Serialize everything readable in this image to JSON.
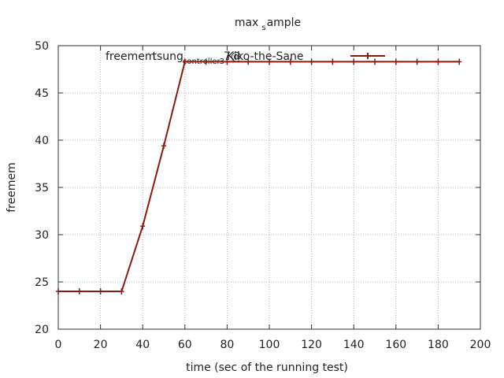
{
  "chart_data": {
    "type": "line",
    "title": {
      "main": "max",
      "sub": "s",
      "rest": "ample"
    },
    "xlabel": "time (sec of the running test)",
    "ylabel": "freemem",
    "xlim": [
      0,
      200
    ],
    "ylim": [
      20,
      50
    ],
    "x_ticks": [
      0,
      20,
      40,
      60,
      80,
      100,
      120,
      140,
      160,
      180,
      200
    ],
    "y_ticks": [
      20,
      25,
      30,
      35,
      40,
      45,
      50
    ],
    "grid": true,
    "legend_position": "top-right",
    "series": [
      {
        "name": "freemem tsung_controller_3_7@Kiko-the-Sane",
        "legend_parts": [
          "freemem",
          "tsung",
          "controller",
          "3",
          "7@",
          "Kiko-the-Sane"
        ],
        "color": "#8b1a0e",
        "x": [
          0,
          10,
          20,
          30,
          40,
          50,
          60,
          70,
          80,
          90,
          100,
          110,
          120,
          130,
          140,
          150,
          160,
          170,
          180,
          190
        ],
        "y": [
          24.0,
          24.0,
          24.0,
          24.0,
          30.9,
          39.4,
          48.3,
          48.3,
          48.3,
          48.3,
          48.3,
          48.3,
          48.3,
          48.3,
          48.3,
          48.3,
          48.3,
          48.3,
          48.3,
          48.3
        ]
      }
    ]
  }
}
